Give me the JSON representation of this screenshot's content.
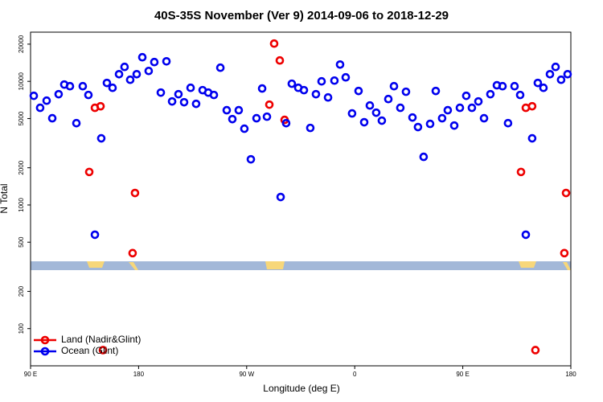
{
  "chart_data": {
    "type": "scatter",
    "title": "40S-35S November (Ver 9)   2014-09-06 to 2018-12-29",
    "xlabel": "Longitude (deg E)",
    "ylabel": "N Total",
    "xlim": [
      90,
      540
    ],
    "ylim": [
      50,
      25000
    ],
    "ylog": true,
    "xticks": [
      {
        "value": 90,
        "label": "90 E"
      },
      180,
      {
        "value": 270,
        "label": "90 W"
      },
      {
        "value": 360,
        "label": "0"
      },
      {
        "value": 450,
        "label": "90 E"
      },
      {
        "value": 540,
        "label": "180"
      }
    ],
    "yticks": [
      100,
      200,
      500,
      1000,
      2000,
      5000,
      10000,
      20000
    ],
    "legend": "lower left",
    "series": [
      {
        "name": "Land (Nadir&Glint)",
        "color": "#ee0000",
        "x": [
          138.9,
          143.6,
          148.3,
          177.0,
          175.0,
          150.3,
          292.9,
          297.6,
          288.9,
          301.6,
          498.5,
          502.5,
          507.8,
          536.0,
          534.6,
          510.5
        ],
        "values": [
          1850,
          6110,
          6290,
          1250,
          408,
          67,
          20200,
          14750,
          6480,
          4880,
          1850,
          6110,
          6290,
          1250,
          408,
          67
        ]
      },
      {
        "name": "Ocean (Glint)",
        "color": "#0000ee",
        "x": [
          92.7,
          98.0,
          103.4,
          108.1,
          113.4,
          118.1,
          122.8,
          128.2,
          133.5,
          138.2,
          143.6,
          148.9,
          153.6,
          158.3,
          163.7,
          168.3,
          173.0,
          178.4,
          183.1,
          188.4,
          193.1,
          198.5,
          203.2,
          207.9,
          213.2,
          217.9,
          223.3,
          227.9,
          233.3,
          238.0,
          242.7,
          248.1,
          253.4,
          258.1,
          263.4,
          268.1,
          273.5,
          278.2,
          282.9,
          286.9,
          298.3,
          302.9,
          307.6,
          313.0,
          317.7,
          323.0,
          327.7,
          332.4,
          337.8,
          343.1,
          347.8,
          352.5,
          357.8,
          363.2,
          367.9,
          372.6,
          377.9,
          382.6,
          388.0,
          392.7,
          398.0,
          402.7,
          408.1,
          412.7,
          417.4,
          422.8,
          427.5,
          432.8,
          437.5,
          442.9,
          447.6,
          452.9,
          457.6,
          463.0,
          467.7,
          473.0,
          478.4,
          483.1,
          487.7,
          493.1,
          497.8,
          502.5,
          507.8,
          512.5,
          517.2,
          522.6,
          527.3,
          531.9,
          537.3
        ],
        "values": [
          7640,
          6110,
          6980,
          5030,
          7870,
          9420,
          9140,
          4590,
          9140,
          7760,
          575,
          3460,
          9710,
          8870,
          11430,
          13090,
          10300,
          11430,
          15660,
          12140,
          14320,
          8110,
          14520,
          6880,
          7870,
          6780,
          8870,
          6580,
          8490,
          8110,
          7760,
          12890,
          5840,
          4950,
          5840,
          4140,
          2340,
          5030,
          8750,
          5180,
          1160,
          4590,
          9570,
          8870,
          8490,
          4200,
          7870,
          10000,
          7410,
          10140,
          13680,
          10770,
          5500,
          8360,
          4670,
          6380,
          5580,
          4810,
          7190,
          9140,
          6110,
          8240,
          5100,
          4270,
          2450,
          4530,
          8360,
          5030,
          5840,
          4390,
          6110,
          7640,
          6110,
          6880,
          5030,
          7870,
          9290,
          9140,
          4590,
          9140,
          7760,
          575,
          3460,
          9710,
          8870,
          11430,
          13090,
          10300,
          11430
        ]
      }
    ]
  }
}
